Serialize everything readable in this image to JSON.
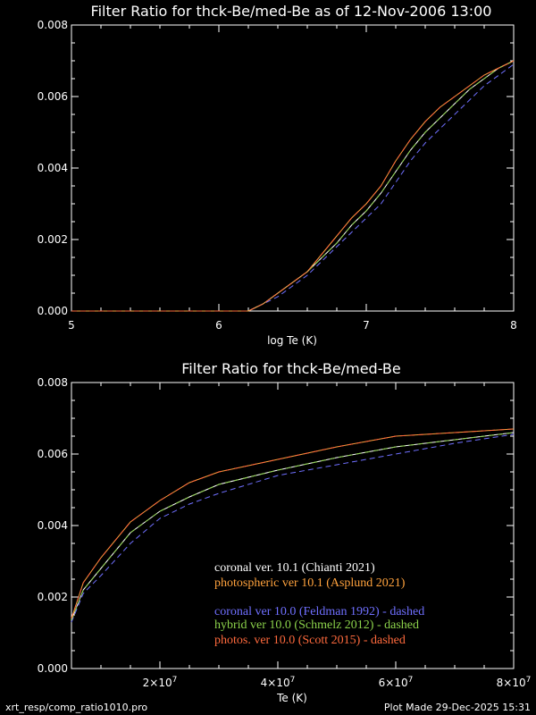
{
  "colors": {
    "background": "#000000",
    "axes": "#ffffff",
    "white": "#ffffff",
    "orange": "#ffa23d",
    "blue": "#6f6fff",
    "green": "#8cd24b",
    "red": "#ff6a3d"
  },
  "chart_data": [
    {
      "type": "line",
      "title": "Filter Ratio for thck-Be/med-Be as of 12-Nov-2006 13:00",
      "xlabel": "log Te (K)",
      "ylabel": "",
      "xlim": [
        5,
        8
      ],
      "ylim": [
        0,
        0.008
      ],
      "xticks": [
        "5",
        "6",
        "7",
        "8"
      ],
      "yticks": [
        "0.000",
        "0.002",
        "0.004",
        "0.006",
        "0.008"
      ],
      "series": [
        {
          "color": "white",
          "style": "solid",
          "x": [
            5.0,
            6.0,
            6.1,
            6.2,
            6.3,
            6.4,
            6.5,
            6.6,
            6.7,
            6.8,
            6.9,
            7.0,
            7.1,
            7.2,
            7.3,
            7.4,
            7.5,
            7.6,
            7.7,
            7.8,
            7.9,
            8.0
          ],
          "y": [
            0.0,
            0.0,
            0.0,
            0.0,
            0.0002,
            0.0005,
            0.0008,
            0.0011,
            0.0015,
            0.0019,
            0.0024,
            0.0028,
            0.0033,
            0.0039,
            0.0045,
            0.005,
            0.0054,
            0.0058,
            0.0062,
            0.0065,
            0.0068,
            0.007
          ]
        },
        {
          "color": "orange",
          "style": "solid",
          "x": [
            5.0,
            6.0,
            6.1,
            6.2,
            6.3,
            6.4,
            6.5,
            6.6,
            6.7,
            6.8,
            6.9,
            7.0,
            7.1,
            7.2,
            7.3,
            7.4,
            7.5,
            7.6,
            7.7,
            7.8,
            7.9,
            8.0
          ],
          "y": [
            0.0,
            0.0,
            0.0,
            0.0,
            0.0002,
            0.0005,
            0.0008,
            0.0011,
            0.0016,
            0.0021,
            0.0026,
            0.003,
            0.0035,
            0.0042,
            0.0048,
            0.0053,
            0.0057,
            0.006,
            0.0063,
            0.0066,
            0.0068,
            0.007
          ]
        },
        {
          "color": "blue",
          "style": "dashed",
          "x": [
            5.0,
            6.0,
            6.1,
            6.2,
            6.3,
            6.4,
            6.5,
            6.6,
            6.7,
            6.8,
            6.9,
            7.0,
            7.1,
            7.2,
            7.3,
            7.4,
            7.5,
            7.6,
            7.7,
            7.8,
            7.9,
            8.0
          ],
          "y": [
            0.0,
            0.0,
            0.0,
            0.0,
            0.0002,
            0.0004,
            0.0007,
            0.001,
            0.0014,
            0.0018,
            0.0022,
            0.0026,
            0.003,
            0.0036,
            0.0042,
            0.0047,
            0.0051,
            0.0055,
            0.0059,
            0.0063,
            0.0066,
            0.0069
          ]
        },
        {
          "color": "green",
          "style": "dashed",
          "x": [
            5.0,
            6.0,
            6.1,
            6.2,
            6.3,
            6.4,
            6.5,
            6.6,
            6.7,
            6.8,
            6.9,
            7.0,
            7.1,
            7.2,
            7.3,
            7.4,
            7.5,
            7.6,
            7.7,
            7.8,
            7.9,
            8.0
          ],
          "y": [
            0.0,
            0.0,
            0.0,
            0.0,
            0.0002,
            0.0005,
            0.0008,
            0.0011,
            0.0015,
            0.0019,
            0.0024,
            0.0028,
            0.0033,
            0.0039,
            0.0045,
            0.005,
            0.0054,
            0.0058,
            0.0062,
            0.0065,
            0.0068,
            0.007
          ]
        },
        {
          "color": "red",
          "style": "dashed",
          "x": [
            5.0,
            6.0,
            6.1,
            6.2,
            6.3,
            6.4,
            6.5,
            6.6,
            6.7,
            6.8,
            6.9,
            7.0,
            7.1,
            7.2,
            7.3,
            7.4,
            7.5,
            7.6,
            7.7,
            7.8,
            7.9,
            8.0
          ],
          "y": [
            0.0,
            0.0,
            0.0,
            0.0,
            0.0002,
            0.0005,
            0.0008,
            0.0011,
            0.0016,
            0.0021,
            0.0026,
            0.003,
            0.0035,
            0.0042,
            0.0048,
            0.0053,
            0.0057,
            0.006,
            0.0063,
            0.0066,
            0.0068,
            0.007
          ]
        }
      ]
    },
    {
      "type": "line",
      "title": "Filter Ratio for thck-Be/med-Be",
      "xlabel": "Te (K)",
      "ylabel": "",
      "xlim": [
        5000000,
        80000000
      ],
      "ylim": [
        0,
        0.008
      ],
      "xticks": [
        {
          "value": 20000000,
          "mantissa": "2×10",
          "exp": "7"
        },
        {
          "value": 40000000,
          "mantissa": "4×10",
          "exp": "7"
        },
        {
          "value": 60000000,
          "mantissa": "6×10",
          "exp": "7"
        },
        {
          "value": 80000000,
          "mantissa": "8×10",
          "exp": "7"
        }
      ],
      "yticks": [
        "0.000",
        "0.002",
        "0.004",
        "0.006",
        "0.008"
      ],
      "series": [
        {
          "name": "coronal ver. 10.1 (Chianti 2021)",
          "color": "white",
          "style": "solid",
          "x": [
            5000000,
            7000000,
            10000000,
            15000000,
            20000000,
            25000000,
            30000000,
            40000000,
            50000000,
            60000000,
            70000000,
            80000000
          ],
          "y": [
            0.00135,
            0.0022,
            0.0028,
            0.0038,
            0.0044,
            0.0048,
            0.00515,
            0.00555,
            0.0059,
            0.0062,
            0.0064,
            0.0066
          ]
        },
        {
          "name": "photospheric ver 10.1 (Asplund 2021)",
          "color": "orange",
          "style": "solid",
          "x": [
            5000000,
            7000000,
            10000000,
            15000000,
            20000000,
            25000000,
            30000000,
            40000000,
            50000000,
            60000000,
            70000000,
            80000000
          ],
          "y": [
            0.0014,
            0.0024,
            0.0031,
            0.0041,
            0.0047,
            0.0052,
            0.0055,
            0.00585,
            0.0062,
            0.0065,
            0.0066,
            0.0067
          ]
        },
        {
          "name": "coronal ver 10.0 (Feldman 1992) - dashed",
          "color": "blue",
          "style": "dashed",
          "x": [
            5000000,
            7000000,
            10000000,
            15000000,
            20000000,
            25000000,
            30000000,
            40000000,
            50000000,
            60000000,
            70000000,
            80000000
          ],
          "y": [
            0.0013,
            0.0021,
            0.0026,
            0.0035,
            0.0042,
            0.0046,
            0.0049,
            0.0054,
            0.0057,
            0.006,
            0.0063,
            0.00655
          ]
        },
        {
          "name": "hybrid ver 10.0 (Schmelz 2012) - dashed",
          "color": "green",
          "style": "dashed",
          "x": [
            5000000,
            7000000,
            10000000,
            15000000,
            20000000,
            25000000,
            30000000,
            40000000,
            50000000,
            60000000,
            70000000,
            80000000
          ],
          "y": [
            0.00135,
            0.0022,
            0.0028,
            0.0038,
            0.0044,
            0.0048,
            0.00515,
            0.00555,
            0.0059,
            0.0062,
            0.0064,
            0.0066
          ]
        },
        {
          "name": "photos. ver 10.0 (Scott 2015) - dashed",
          "color": "red",
          "style": "dashed",
          "x": [
            5000000,
            7000000,
            10000000,
            15000000,
            20000000,
            25000000,
            30000000,
            40000000,
            50000000,
            60000000,
            70000000,
            80000000
          ],
          "y": [
            0.0014,
            0.0024,
            0.0031,
            0.0041,
            0.0047,
            0.0052,
            0.0055,
            0.00585,
            0.0062,
            0.0065,
            0.0066,
            0.0067
          ]
        }
      ]
    }
  ],
  "footer": {
    "left": "xrt_resp/comp_ratio1010.pro",
    "right": "Plot Made 29-Dec-2025 15:31"
  }
}
